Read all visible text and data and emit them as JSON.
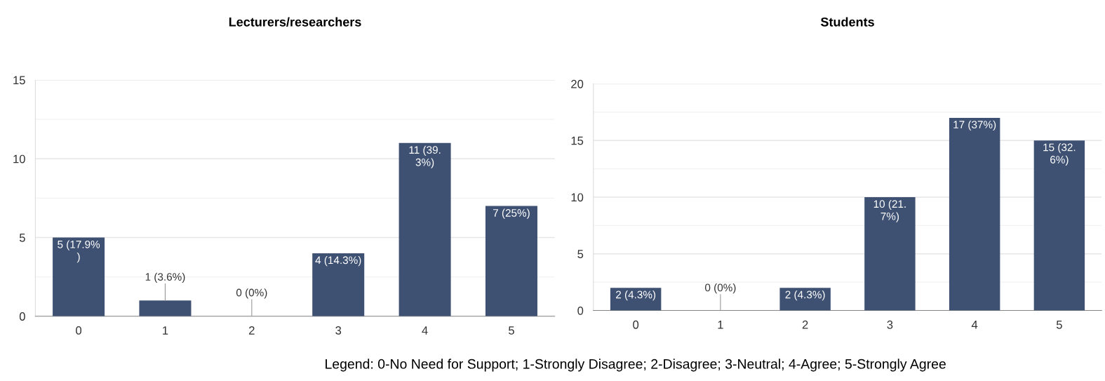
{
  "chart_data": [
    {
      "type": "bar",
      "title": "Lecturers/researchers",
      "categories": [
        "0",
        "1",
        "2",
        "3",
        "4",
        "5"
      ],
      "values": [
        5,
        1,
        0,
        4,
        11,
        7
      ],
      "color": "#3f5173",
      "value_labels": [
        "5 (17.9%\n)",
        "1 (3.6%)",
        "0 (0%)",
        "4 (14.3%)",
        "11 (39.\n3%)",
        "7 (25%)"
      ],
      "ylim": [
        0,
        15
      ],
      "yticks": [
        0,
        5,
        10,
        15
      ],
      "grid": "y"
    },
    {
      "type": "bar",
      "title": "Students",
      "categories": [
        "0",
        "1",
        "2",
        "3",
        "4",
        "5"
      ],
      "values": [
        2,
        0,
        2,
        10,
        17,
        15
      ],
      "color": "#3f5173",
      "value_labels": [
        "2 (4.3%)",
        "0 (0%)",
        "2 (4.3%)",
        "10 (21.\n7%)",
        "17 (37%)",
        "15 (32.\n6%)"
      ],
      "ylim": [
        0,
        20
      ],
      "yticks": [
        0,
        5,
        10,
        15,
        20
      ],
      "grid": "y",
      "annotations": [
        "Legend: 0-No Need for Support; 1-Strongly Disagree; 2-Disagree; 3-Neutral; 4-Agree; 5-Strongly Agree"
      ]
    }
  ]
}
